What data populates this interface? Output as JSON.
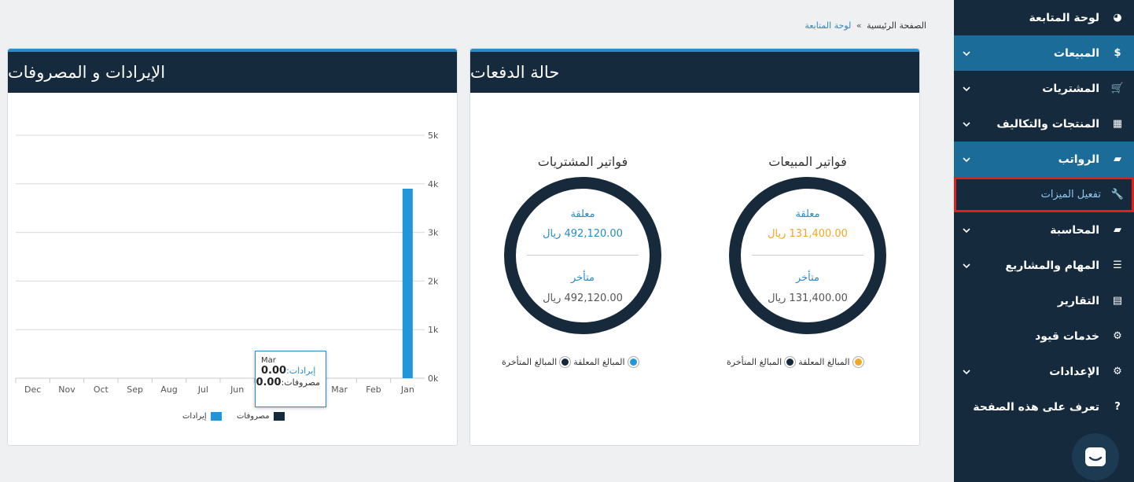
{
  "sidebar": {
    "items": [
      {
        "label": "لوحة المتابعة",
        "icon": "dashboard-icon",
        "glyph": "◕",
        "chevron": false
      },
      {
        "label": "المبيعات",
        "icon": "dollar-icon",
        "glyph": "$",
        "chevron": true
      },
      {
        "label": "المشتريات",
        "icon": "cart-icon",
        "glyph": "🛒",
        "chevron": true
      },
      {
        "label": "المنتجات والتكاليف",
        "icon": "grid-icon",
        "glyph": "▦",
        "chevron": true
      },
      {
        "label": "الرواتب",
        "icon": "folder-open-icon",
        "glyph": "▰",
        "chevron": true
      },
      {
        "label": "تفعيل الميزات",
        "icon": "wrench-icon",
        "glyph": "🔧",
        "chevron": false
      },
      {
        "label": "المحاسبة",
        "icon": "folder-icon",
        "glyph": "▰",
        "chevron": true
      },
      {
        "label": "المهام والمشاريع",
        "icon": "list-icon",
        "glyph": "☰",
        "chevron": true
      },
      {
        "label": "التقارير",
        "icon": "document-icon",
        "glyph": "▤",
        "chevron": false
      },
      {
        "label": "خدمات قيود",
        "icon": "gears-icon",
        "glyph": "⚙",
        "chevron": false
      },
      {
        "label": "الإعدادات",
        "icon": "gear-icon",
        "glyph": "⚙",
        "chevron": true
      },
      {
        "label": "تعرف على هذه الصفحة",
        "icon": "help-icon",
        "glyph": "?",
        "chevron": false
      }
    ]
  },
  "breadcrumb": {
    "home": "الصفحة الرئيسية",
    "separator": "»",
    "current": "لوحة المتابعة"
  },
  "payments": {
    "title": "حالة الدفعات",
    "sales": {
      "title": "فواتير المبيعات",
      "pending_label": "معلقة",
      "pending_amount": "131,400.00 ريال",
      "overdue_label": "متأخر",
      "overdue_amount": "131,400.00 ريال",
      "legend_pending": "المبالغ المعلقة",
      "legend_overdue": "المبالغ المتأخرة"
    },
    "purchases": {
      "title": "فواتير المشتريات",
      "pending_label": "معلقة",
      "pending_amount": "492,120.00 ريال",
      "overdue_label": "متأخر",
      "overdue_amount": "492,120.00 ريال",
      "legend_pending": "المبالغ المعلقة",
      "legend_overdue": "المبالغ المتأخرة"
    }
  },
  "revenue": {
    "title": "الإيرادات و المصروفات",
    "tooltip": {
      "month": "Mar",
      "revenue_label": "إيرادات:",
      "revenue_value": "0.00",
      "expense_label": "مصروفات:",
      "expense_value": "0.00"
    },
    "legend_revenue": "إيرادات",
    "legend_expenses": "مصروفات"
  },
  "colors": {
    "accent": "#2a8bc7",
    "navy": "#152a3d",
    "orange": "#f5a623",
    "highlight": "#e0201b",
    "bar": "#2196d9"
  },
  "chart_data": {
    "type": "bar",
    "categories": [
      "Dec",
      "Nov",
      "Oct",
      "Sep",
      "Aug",
      "Jul",
      "Jun",
      "May",
      "Apr",
      "Mar",
      "Feb",
      "Jan"
    ],
    "series": [
      {
        "name": "إيرادات",
        "values": [
          0,
          0,
          0,
          0,
          0,
          0,
          0,
          0,
          0,
          0,
          0,
          3900
        ]
      },
      {
        "name": "مصروفات",
        "values": [
          0,
          0,
          0,
          0,
          0,
          0,
          0,
          0,
          0,
          0,
          0,
          0
        ]
      }
    ],
    "yticks": [
      "0k",
      "1k",
      "2k",
      "3k",
      "4k",
      "5k"
    ],
    "ylim": [
      0,
      5000
    ],
    "grid": true,
    "legend": "bottom"
  }
}
